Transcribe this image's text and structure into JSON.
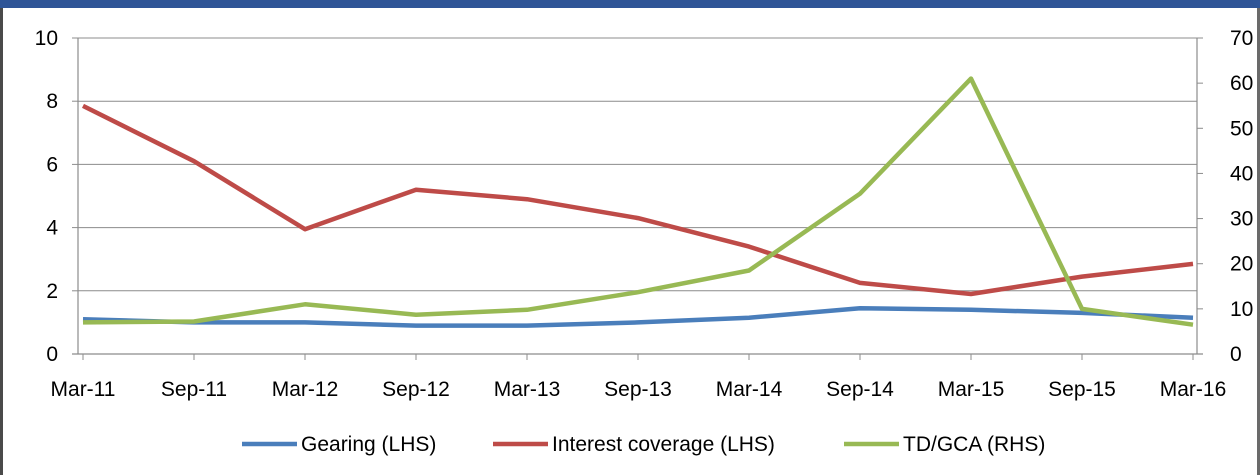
{
  "chart_data": {
    "type": "line",
    "title": "",
    "categories": [
      "Mar-11",
      "Sep-11",
      "Mar-12",
      "Sep-12",
      "Mar-13",
      "Sep-13",
      "Mar-14",
      "Sep-14",
      "Mar-15",
      "Sep-15",
      "Mar-16"
    ],
    "y_left": {
      "ylim": [
        0,
        10
      ],
      "ticks": [
        "0",
        "2",
        "4",
        "6",
        "8",
        "10"
      ]
    },
    "y_right": {
      "ylim": [
        0,
        70
      ],
      "ticks": [
        "0",
        "10",
        "20",
        "30",
        "40",
        "50",
        "60",
        "70"
      ]
    },
    "grid": true,
    "legend_position": "bottom",
    "series": [
      {
        "name": "Gearing (LHS)",
        "axis": "left",
        "color": "#4a7ebb",
        "values": [
          1.1,
          1.0,
          1.0,
          0.9,
          0.9,
          1.0,
          1.15,
          1.45,
          1.4,
          1.3,
          1.15
        ]
      },
      {
        "name": "Interest coverage (LHS)",
        "axis": "left",
        "color": "#be4b48",
        "values": [
          7.85,
          6.1,
          3.95,
          5.2,
          4.9,
          4.3,
          3.4,
          2.25,
          1.9,
          2.45,
          2.85
        ]
      },
      {
        "name": "TD/GCA (RHS)",
        "axis": "right",
        "color": "#98b954",
        "values": [
          7.0,
          7.2,
          11.0,
          8.7,
          9.8,
          13.7,
          18.5,
          35.5,
          61.0,
          10.0,
          6.5
        ]
      }
    ]
  }
}
